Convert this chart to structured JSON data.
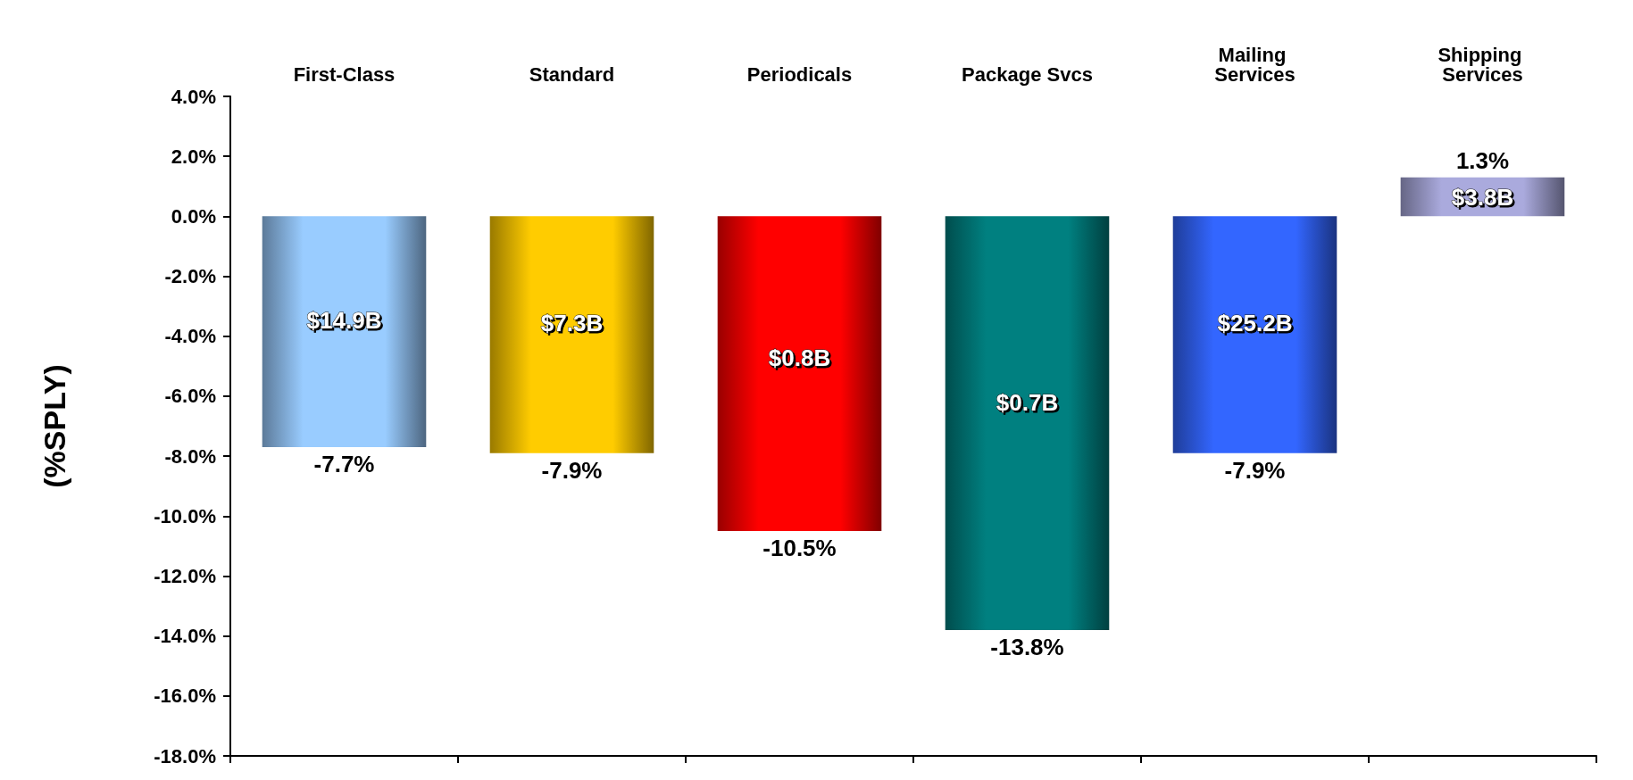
{
  "chart_data": {
    "type": "bar",
    "ylabel": "(%SPLY)",
    "categories": [
      "First-Class",
      "Standard",
      "Periodicals",
      "Package Svcs",
      "Mailing Services",
      "Shipping Services"
    ],
    "values": [
      -7.7,
      -7.9,
      -10.5,
      -13.8,
      -7.9,
      1.3
    ],
    "value_labels": [
      "-7.7%",
      "-7.9%",
      "-10.5%",
      "-13.8%",
      "-7.9%",
      "1.3%"
    ],
    "colors": [
      "#99ccff",
      "#ffcc00",
      "#ff0000",
      "#008080",
      "#3366ff",
      "#aaaadd"
    ],
    "ylim": [
      -18,
      4
    ],
    "yticks": [
      {
        "value": -18,
        "label": "-18.0%"
      },
      {
        "value": -16,
        "label": "-16.0%"
      },
      {
        "value": -14,
        "label": "-14.0%"
      },
      {
        "value": -12,
        "label": "-12.0%"
      },
      {
        "value": -10,
        "label": "-10.0%"
      },
      {
        "value": -8,
        "label": "-8.0%"
      },
      {
        "value": -6,
        "label": "-6.0%"
      },
      {
        "value": -4,
        "label": "-4.0%"
      },
      {
        "value": -2,
        "label": "-2.0%"
      },
      {
        "value": 0,
        "label": "0.0%"
      },
      {
        "value": 2,
        "label": "2.0%"
      },
      {
        "value": 4,
        "label": "4.0%"
      }
    ],
    "annotations": [
      "$14.9B",
      "$7.3B",
      "$0.8B",
      "$0.7B",
      "$25.2B",
      "$3.8B"
    ],
    "grid": false
  }
}
